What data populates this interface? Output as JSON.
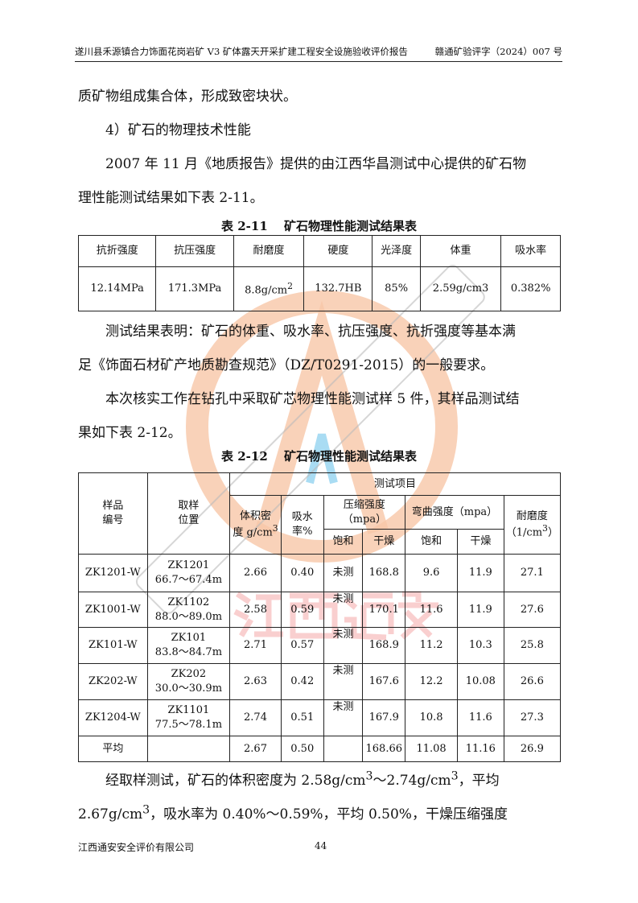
{
  "header": {
    "left": "遂川县禾源镇合力饰面花岗岩矿 V3 矿体露天开采扩建工程安全设施验收评价报告",
    "right": "赣通矿验评字（2024）007 号"
  },
  "paragraphs": [
    "质矿物组成集合体，形成致密块状。",
    "　　4）矿石的物理技术性能",
    "　　2007 年 11 月《地质报告》提供的由江西华昌测试中心提供的矿石物",
    "理性能测试结果如下表 2-11。"
  ],
  "table1": {
    "caption": "表 2-11　 矿石物理性能测试结果表",
    "headers": [
      "抗折强度",
      "抗压强度",
      "耐磨度",
      "硬度",
      "光泽度",
      "体重",
      "吸水率"
    ],
    "values": [
      "12.14MPa",
      "171.3MPa",
      "8.8g/cm",
      "132.7HB",
      "85%",
      "2.59g/cm3",
      "0.382%"
    ],
    "sup": "2"
  },
  "paragraphs2": [
    "　　测试结果表明：矿石的体重、吸水率、抗压强度、抗折强度等基本满",
    "足《饰面石材矿产地质勘查规范》（DZ/T0291-2015）的一般要求。",
    "　　本次核实工作在钻孔中采取矿芯物理性能测试样 5 件，其样品测试结",
    "果如下表 2-12。"
  ],
  "table2": {
    "caption": "表 2-12　 矿石物理性能测试结果表",
    "h_sample": [
      "样品",
      "编号"
    ],
    "h_loc": [
      "取样",
      "位置"
    ],
    "h_items": "测试项目",
    "h_density": [
      "体积密",
      "度 g/cm",
      "3"
    ],
    "h_absorb": [
      "吸水",
      "率%"
    ],
    "h_comp": [
      "压缩强度",
      "（mpa）"
    ],
    "h_bend": "弯曲强度（mpa）",
    "h_wear": [
      "耐磨度",
      "（1/cm",
      "3",
      "）"
    ],
    "h_sat": "饱和",
    "h_dry": "干燥",
    "rows": [
      [
        "ZK1201-W",
        "ZK1201",
        "66.7～67.4m",
        "2.66",
        "0.40",
        "未测",
        "168.8",
        "9.6",
        "11.9",
        "27.1"
      ],
      [
        "ZK1001-W",
        "ZK1102",
        "88.0～89.0m",
        "2.58",
        "0.59",
        "未测",
        "170.1",
        "11.6",
        "11.9",
        "27.6"
      ],
      [
        "ZK101-W",
        "ZK101",
        "83.8～84.7m",
        "2.71",
        "0.57",
        "未测",
        "168.9",
        "11.2",
        "10.3",
        "25.8"
      ],
      [
        "ZK202-W",
        "ZK202",
        "30.0～30.9m",
        "2.63",
        "0.42",
        "未测",
        "167.6",
        "12.2",
        "10.08",
        "26.6"
      ],
      [
        "ZK1204-W",
        "ZK1101",
        "77.5～78.1m",
        "2.74",
        "0.51",
        "未测",
        "167.9",
        "10.8",
        "11.6",
        "27.3"
      ]
    ],
    "avg": [
      "平均",
      "",
      "2.67",
      "0.50",
      "",
      "168.66",
      "11.08",
      "11.16",
      "26.9"
    ]
  },
  "paragraphs3": [
    [
      "　　经取样测试，矿石的体积密度为 2.58g/cm",
      "3",
      "～2.74g/cm",
      "3",
      "，平均"
    ],
    [
      "2.67g/cm",
      "3",
      "，吸水率为 0.40%～0.59%，平均 0.50%，干燥压缩强度"
    ]
  ],
  "footer": {
    "company": "江西通安安全评价有限公司",
    "page": "44"
  },
  "watermark": {
    "text": "江西通安",
    "ring_text": "江西通安安全评价有限公司",
    "color": "#f4b08a"
  }
}
